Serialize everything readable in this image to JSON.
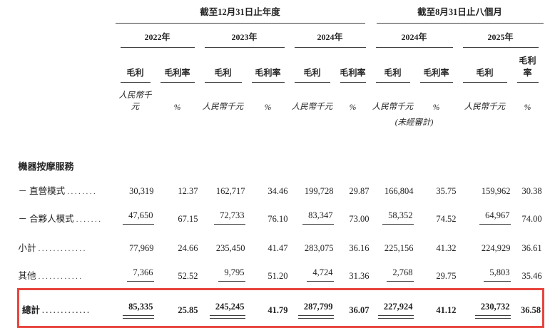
{
  "table": {
    "highlight_color": "#e8453f",
    "period_groups": [
      {
        "label": "截至12月31日止年度"
      },
      {
        "label": "截至8月31日止八個月"
      }
    ],
    "years": [
      "2022年",
      "2023年",
      "2024年",
      "2024年",
      "2025年"
    ],
    "measure_profit": "毛利",
    "measure_margin": "毛利率",
    "unit_currency": "人民幣千元",
    "unit_percent": "%",
    "unaudited": "(未經審計)",
    "section_title": "機器按摩服務",
    "rows": [
      {
        "label": "－ 直營模式",
        "dots": "........",
        "style": "plain",
        "values": [
          "30,319",
          "12.37",
          "162,717",
          "34.46",
          "199,728",
          "29.87",
          "166,804",
          "35.75",
          "159,962",
          "30.38"
        ]
      },
      {
        "label": "－ 合夥人模式",
        "dots": ".......",
        "style": "sumline",
        "values": [
          "47,650",
          "67.15",
          "72,733",
          "76.10",
          "83,347",
          "73.00",
          "58,352",
          "74.52",
          "64,967",
          "74.00"
        ]
      },
      {
        "label": "小計",
        "dots": ".............",
        "style": "plain",
        "values": [
          "77,969",
          "24.66",
          "235,450",
          "41.47",
          "283,075",
          "36.16",
          "225,156",
          "41.32",
          "224,929",
          "36.61"
        ]
      },
      {
        "label": "其他",
        "dots": "............",
        "style": "sumline",
        "values": [
          "7,366",
          "52.52",
          "9,795",
          "51.20",
          "4,724",
          "31.36",
          "2,768",
          "29.75",
          "5,803",
          "35.46"
        ]
      },
      {
        "label": "總計",
        "dots": ".............",
        "style": "total",
        "values": [
          "85,335",
          "25.85",
          "245,245",
          "41.79",
          "287,799",
          "36.07",
          "227,924",
          "41.12",
          "230,732",
          "36.58"
        ]
      }
    ]
  }
}
